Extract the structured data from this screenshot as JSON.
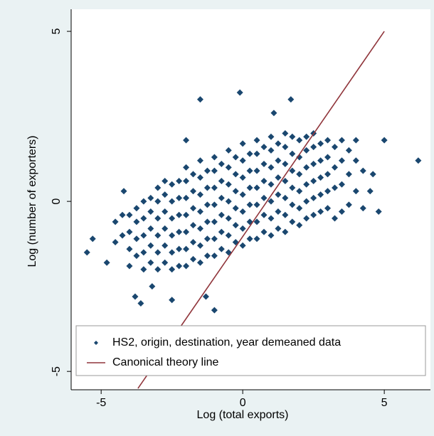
{
  "chart_data": {
    "type": "scatter",
    "x_label": "Log (total exports)",
    "y_label": "Log (number of exporters)",
    "xlim": [
      -6.06,
      6.63
    ],
    "ylim": [
      -5.54,
      5.65
    ],
    "xticks": [
      -5,
      0,
      5
    ],
    "yticks": [
      -5,
      0,
      5
    ],
    "grid": false,
    "legend": "bottom",
    "series": [
      {
        "name": "HS2, origin, destination, year demeaned data",
        "color": "#1a476f",
        "marker": "diamond",
        "x": [
          -4.5,
          -4.5,
          -4.25,
          -4.25,
          -4,
          -4,
          -4,
          -4,
          -3.75,
          -3.75,
          -3.75,
          -3.75,
          -3.5,
          -3.5,
          -3.5,
          -3.5,
          -3.5,
          -3.25,
          -3.25,
          -3.25,
          -3.25,
          -3.25,
          -3,
          -3,
          -3,
          -3,
          -3,
          -3,
          -2.75,
          -2.75,
          -2.75,
          -2.75,
          -2.75,
          -2.75,
          -2.5,
          -2.5,
          -2.5,
          -2.5,
          -2.5,
          -2.5,
          -2.25,
          -2.25,
          -2.25,
          -2.25,
          -2.25,
          -2.25,
          -2,
          -2,
          -2,
          -2,
          -2,
          -2,
          -2,
          -1.75,
          -1.75,
          -1.75,
          -1.75,
          -1.75,
          -1.75,
          -1.5,
          -1.5,
          -1.5,
          -1.5,
          -1.5,
          -1.5,
          -1.5,
          -1.25,
          -1.25,
          -1.25,
          -1.25,
          -1.25,
          -1.25,
          -1,
          -1,
          -1,
          -1,
          -1,
          -1,
          -1,
          -0.75,
          -0.75,
          -0.75,
          -0.75,
          -0.75,
          -0.75,
          -0.5,
          -0.5,
          -0.5,
          -0.5,
          -0.5,
          -0.5,
          -0.5,
          -0.25,
          -0.25,
          -0.25,
          -0.25,
          -0.25,
          -0.25,
          0,
          0,
          0,
          0,
          0,
          0,
          0,
          0.25,
          0.25,
          0.25,
          0.25,
          0.25,
          0.25,
          0.5,
          0.5,
          0.5,
          0.5,
          0.5,
          0.5,
          0.5,
          0.75,
          0.75,
          0.75,
          0.75,
          0.75,
          0.75,
          1,
          1,
          1,
          1,
          1,
          1,
          1,
          1.25,
          1.25,
          1.25,
          1.25,
          1.25,
          1.25,
          1.5,
          1.5,
          1.5,
          1.5,
          1.5,
          1.5,
          1.5,
          1.75,
          1.75,
          1.75,
          1.75,
          1.75,
          1.75,
          2,
          2,
          2,
          2,
          2,
          2,
          2.25,
          2.25,
          2.25,
          2.25,
          2.25,
          2.25,
          2.5,
          2.5,
          2.5,
          2.5,
          2.5,
          2.5,
          2.75,
          2.75,
          2.75,
          2.75,
          2.75,
          3,
          3,
          3,
          3,
          3,
          3.25,
          3.25,
          3.25,
          3.25,
          3.5,
          3.5,
          3.5,
          3.5,
          3.75,
          3.75,
          3.75,
          4,
          4,
          4,
          4.25,
          4.25,
          -5.5,
          -5.3,
          -4.8,
          -3.8,
          -3.6,
          -2.5,
          -1.3,
          -1,
          -1.5,
          -0.1,
          1.7,
          1.1,
          4.5,
          4.8,
          6.2,
          5,
          4.6,
          -4.2,
          -2,
          -3.2
        ],
        "values": [
          -1.2,
          -0.6,
          -1,
          -0.4,
          -1.9,
          -1.4,
          -0.9,
          -0.4,
          -1.6,
          -1.1,
          -0.6,
          -0.2,
          -2,
          -1.5,
          -1,
          -0.5,
          0,
          -1.8,
          -1.3,
          -0.8,
          -0.3,
          0.1,
          -2,
          -1.5,
          -1,
          -0.5,
          0,
          0.4,
          -1.8,
          -1.3,
          -0.8,
          -0.3,
          0.2,
          0.6,
          -2,
          -1.5,
          -1,
          -0.5,
          0,
          0.5,
          -1.9,
          -1.4,
          -0.9,
          -0.4,
          0.1,
          0.6,
          -1.9,
          -1.4,
          -0.9,
          -0.4,
          0.1,
          0.6,
          1,
          -1.7,
          -1.2,
          -0.7,
          -0.2,
          0.3,
          0.8,
          -1.8,
          -1.3,
          -0.8,
          -0.3,
          0.2,
          0.7,
          1.2,
          -1.6,
          -1.1,
          -0.6,
          -0.1,
          0.4,
          0.9,
          -1.6,
          -1.1,
          -0.6,
          -0.1,
          0.4,
          0.9,
          1.3,
          -1.4,
          -0.9,
          -0.4,
          0.1,
          0.6,
          1.1,
          -1.5,
          -1,
          -0.5,
          0,
          0.5,
          1,
          1.5,
          -1.2,
          -0.7,
          -0.2,
          0.3,
          0.8,
          1.3,
          -1.3,
          -0.8,
          -0.3,
          0.2,
          0.7,
          1.2,
          1.7,
          -1.1,
          -0.6,
          -0.1,
          0.4,
          0.9,
          1.4,
          -1.1,
          -0.6,
          -0.1,
          0.4,
          0.9,
          1.4,
          1.8,
          -0.9,
          -0.4,
          0.1,
          0.6,
          1.1,
          1.6,
          -1,
          -0.5,
          0,
          0.5,
          1,
          1.5,
          1.9,
          -0.8,
          -0.3,
          0.2,
          0.7,
          1.2,
          1.7,
          -0.9,
          -0.4,
          0.1,
          0.6,
          1.1,
          1.6,
          2,
          -0.6,
          -0.1,
          0.4,
          0.9,
          1.4,
          1.9,
          -0.7,
          -0.2,
          0.3,
          0.8,
          1.3,
          1.8,
          -0.5,
          0,
          0.5,
          1,
          1.5,
          1.9,
          -0.4,
          0.1,
          0.6,
          1.1,
          1.6,
          2,
          -0.3,
          0.2,
          0.7,
          1.2,
          1.7,
          -0.2,
          0.3,
          0.8,
          1.3,
          1.8,
          -0.5,
          0.4,
          1,
          1.6,
          -0.3,
          0.5,
          1.2,
          1.8,
          -0.1,
          0.8,
          1.5,
          0.3,
          1.2,
          1.8,
          -0.2,
          0.9,
          -1.5,
          -1.1,
          -1.8,
          -2.8,
          -3,
          -2.9,
          -2.8,
          -3.2,
          3,
          3.2,
          3,
          2.6,
          0.3,
          -0.3,
          1.2,
          1.8,
          0.8,
          0.3,
          1.8,
          -2.5
        ]
      },
      {
        "name": "Canonical theory line",
        "color": "#90353b",
        "marker": "line",
        "x": [
          -3.7,
          5
        ],
        "values": [
          -5.5,
          5
        ]
      }
    ]
  }
}
